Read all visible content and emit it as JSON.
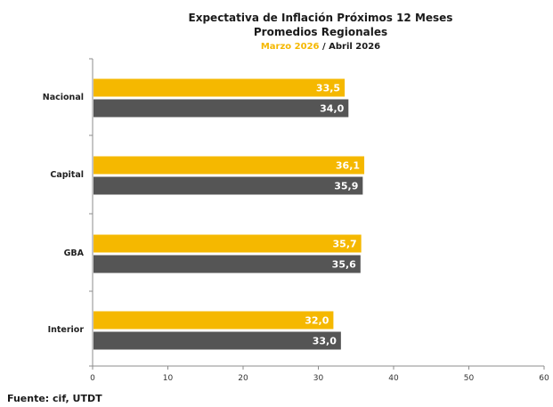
{
  "chart_data": {
    "type": "bar",
    "orientation": "horizontal",
    "title": "Expectativa de Inflación Próximos 12 Meses",
    "subtitle": "Promedios Regionales",
    "period_line": {
      "first": "Marzo 2026",
      "separator": " / ",
      "second": "Abril 2026"
    },
    "categories": [
      "Nacional",
      "Capital",
      "GBA",
      "Interior"
    ],
    "series": [
      {
        "name": "Marzo 2026",
        "color": "#f5b800",
        "values": [
          33.5,
          36.1,
          35.7,
          32.0
        ],
        "labels": [
          "33,5",
          "36,1",
          "35,7",
          "32,0"
        ]
      },
      {
        "name": "Abril 2026",
        "color": "#555555",
        "values": [
          34.0,
          35.9,
          35.6,
          33.0
        ],
        "labels": [
          "34,0",
          "35,9",
          "35,6",
          "33,0"
        ]
      }
    ],
    "xlim": [
      0,
      60
    ],
    "xticks": [
      0,
      10,
      20,
      30,
      40,
      50,
      60
    ],
    "grid": false,
    "legend": "none",
    "xlabel": "",
    "ylabel": ""
  },
  "footer": {
    "source": "Fuente: cif, UTDT"
  }
}
